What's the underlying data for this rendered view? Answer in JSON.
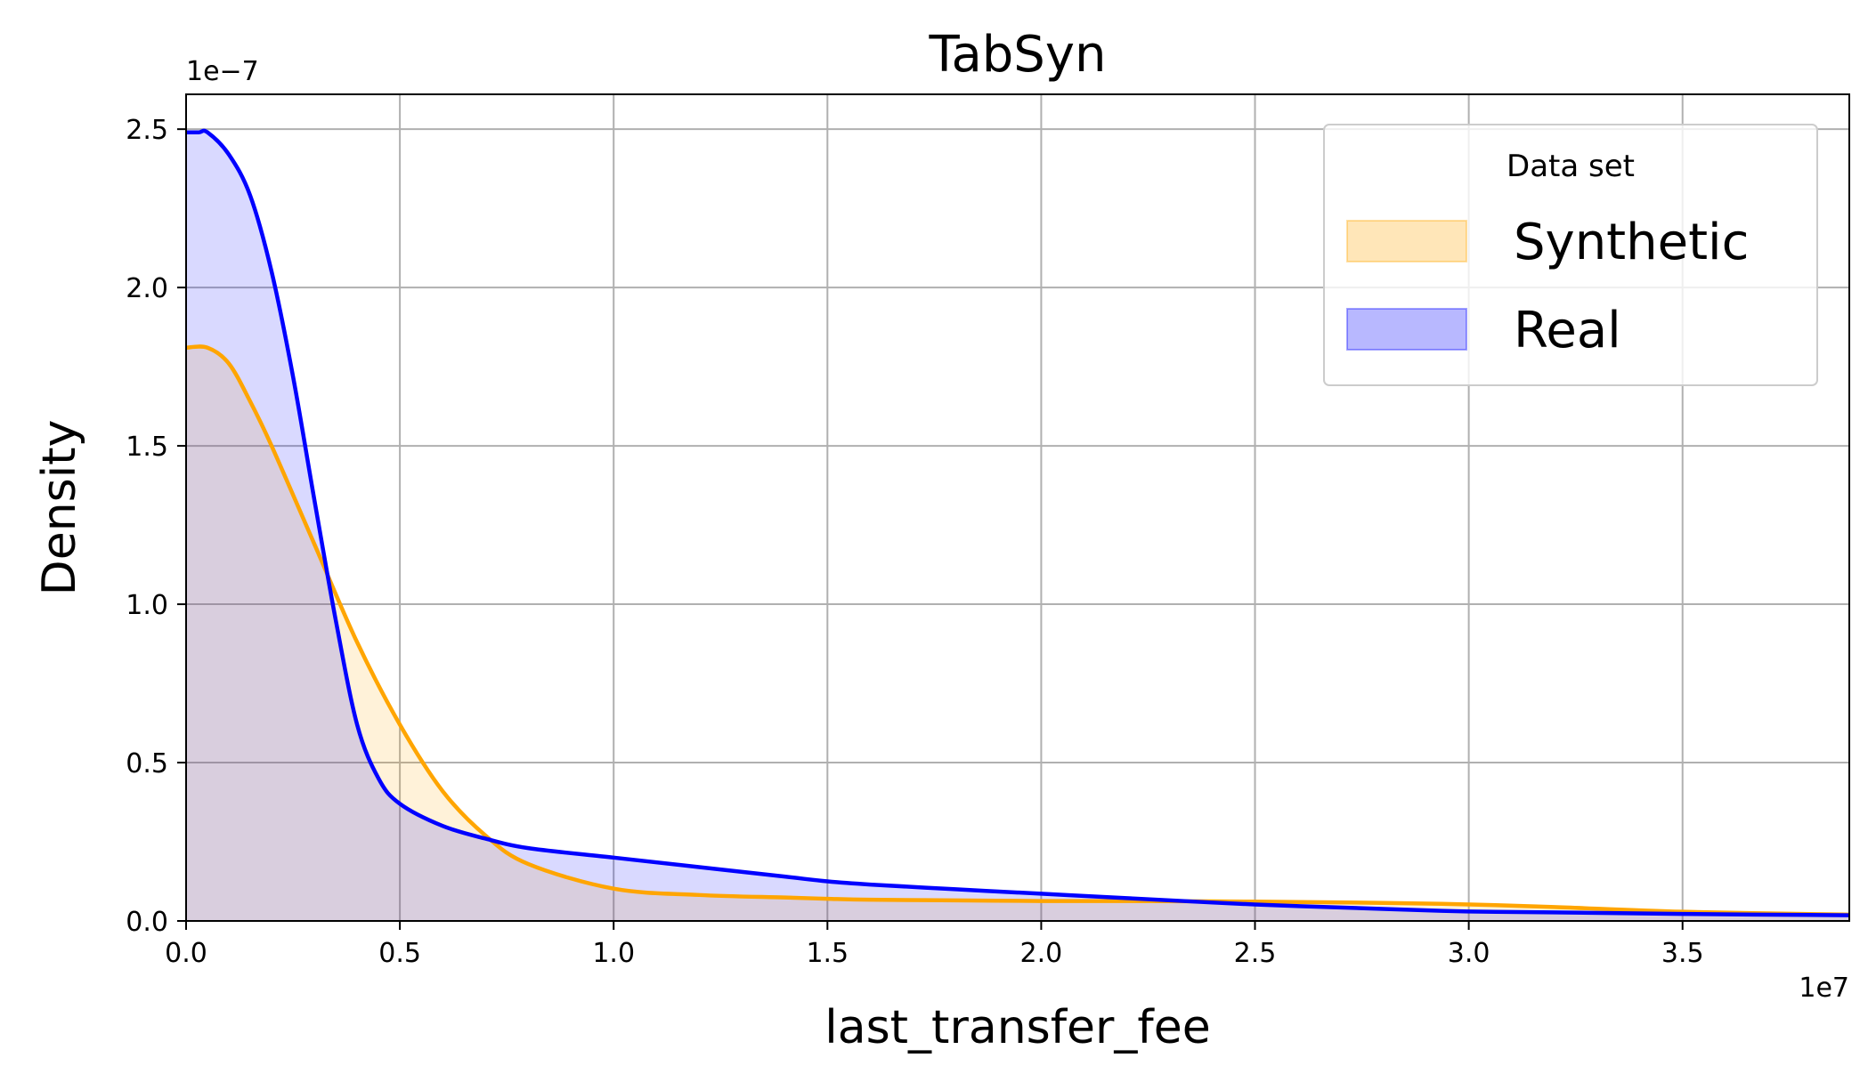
{
  "chart_data": {
    "type": "area",
    "title": "TabSyn",
    "xlabel": "last_transfer_fee",
    "ylabel": "Density",
    "x_offset_text": "1e7",
    "y_offset_text": "1e−7",
    "xlim": [
      0,
      3.89
    ],
    "ylim": [
      0,
      2.61
    ],
    "x_ticks": [
      0.0,
      0.5,
      1.0,
      1.5,
      2.0,
      2.5,
      3.0,
      3.5
    ],
    "x_tick_labels": [
      "0.0",
      "0.5",
      "1.0",
      "1.5",
      "2.0",
      "2.5",
      "3.0",
      "3.5"
    ],
    "y_ticks": [
      0.0,
      0.5,
      1.0,
      1.5,
      2.0,
      2.5
    ],
    "y_tick_labels": [
      "0.0",
      "0.5",
      "1.0",
      "1.5",
      "2.0",
      "2.5"
    ],
    "grid": true,
    "legend": {
      "title": "Data set",
      "placement": "top-right",
      "entries": [
        "Synthetic",
        "Real"
      ]
    },
    "series": [
      {
        "name": "Synthetic",
        "line_color": "#ffa500",
        "fill_color": "#ffa500",
        "x": [
          0,
          0.05,
          0.1,
          0.15,
          0.2,
          0.3,
          0.4,
          0.5,
          0.6,
          0.7,
          0.8,
          1.0,
          1.2,
          1.4,
          1.5,
          1.6,
          1.8,
          2.0,
          2.2,
          2.5,
          2.8,
          3.0,
          3.2,
          3.5,
          3.89
        ],
        "y": [
          1.81,
          1.81,
          1.76,
          1.64,
          1.5,
          1.19,
          0.88,
          0.62,
          0.41,
          0.27,
          0.18,
          0.102,
          0.082,
          0.074,
          0.07,
          0.067,
          0.065,
          0.063,
          0.063,
          0.061,
          0.057,
          0.052,
          0.044,
          0.029,
          0.02
        ]
      },
      {
        "name": "Real",
        "line_color": "#0000ff",
        "fill_color": "#0000ff",
        "x": [
          0,
          0.03,
          0.05,
          0.1,
          0.15,
          0.2,
          0.25,
          0.3,
          0.35,
          0.4,
          0.45,
          0.5,
          0.6,
          0.7,
          0.8,
          1.0,
          1.2,
          1.4,
          1.5,
          1.6,
          1.8,
          2.0,
          2.2,
          2.5,
          2.8,
          3.0,
          3.2,
          3.5,
          3.89
        ],
        "y": [
          2.49,
          2.49,
          2.49,
          2.42,
          2.29,
          2.05,
          1.72,
          1.33,
          0.95,
          0.62,
          0.45,
          0.37,
          0.3,
          0.26,
          0.23,
          0.2,
          0.17,
          0.14,
          0.125,
          0.115,
          0.1,
          0.086,
          0.072,
          0.052,
          0.038,
          0.03,
          0.027,
          0.022,
          0.018
        ]
      }
    ]
  }
}
